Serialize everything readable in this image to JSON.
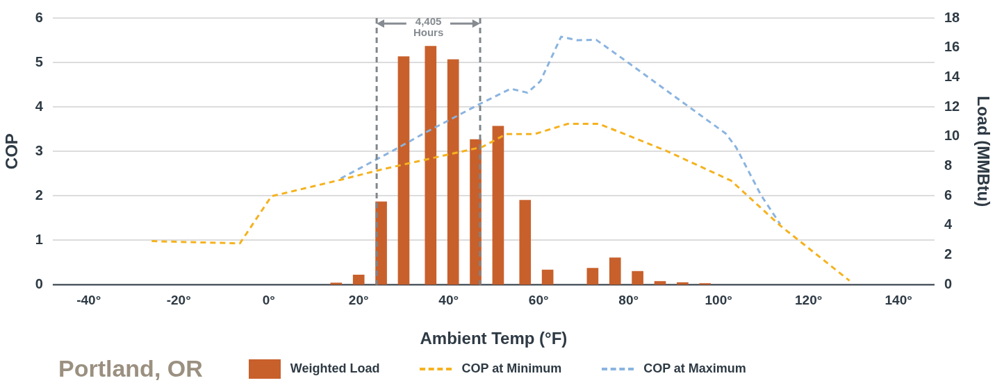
{
  "chart_data": {
    "type": "bar",
    "title": "Portland, OR",
    "xlabel": "Ambient Temp (°F)",
    "ylabel": "COP",
    "y2label": "Load (MMBtu)",
    "xlim": [
      -48,
      148
    ],
    "xticks": [
      {
        "value": -40,
        "label": "-40°"
      },
      {
        "value": -20,
        "label": "-20°"
      },
      {
        "value": 0,
        "label": "0°"
      },
      {
        "value": 20,
        "label": "20°"
      },
      {
        "value": 40,
        "label": "40°"
      },
      {
        "value": 60,
        "label": "60°"
      },
      {
        "value": 80,
        "label": "80°"
      },
      {
        "value": 100,
        "label": "100°"
      },
      {
        "value": 120,
        "label": "120°"
      },
      {
        "value": 140,
        "label": "140°"
      }
    ],
    "ylim": [
      0,
      6
    ],
    "yticks": [
      0,
      1,
      2,
      3,
      4,
      5,
      6
    ],
    "y2lim": [
      0,
      18
    ],
    "y2ticks": [
      0,
      2,
      4,
      6,
      8,
      10,
      12,
      14,
      16,
      18
    ],
    "grid": "y",
    "legend": "bottom",
    "series": [
      {
        "name": "Weighted Load",
        "axis": "y2",
        "color": "#c8602c",
        "x": [
          15,
          20,
          25,
          30,
          36,
          41,
          46,
          51,
          57,
          62,
          72,
          77,
          82,
          87,
          92,
          97
        ],
        "values": [
          0.12,
          0.66,
          5.6,
          15.4,
          16.1,
          15.2,
          9.8,
          10.7,
          5.7,
          1.0,
          1.12,
          1.82,
          0.9,
          0.22,
          0.14,
          0.09
        ]
      },
      {
        "name": "COP at Minimum",
        "type": "line",
        "line_style": "dashed",
        "color": "#f5b21e",
        "x": [
          -26,
          -6.4,
          0.6,
          16,
          25,
          36,
          47.5,
          52.8,
          59.1,
          66.5,
          73.4,
          88.2,
          102.8,
          113.7,
          129.1
        ],
        "values": [
          0.98,
          0.93,
          1.99,
          2.36,
          2.59,
          2.84,
          3.1,
          3.39,
          3.39,
          3.62,
          3.62,
          3.02,
          2.34,
          1.33,
          0.09
        ]
      },
      {
        "name": "COP at Maximum",
        "type": "line",
        "line_style": "dashed",
        "color": "#8ab4e0",
        "x": [
          16,
          27.7,
          34.4,
          47,
          53.8,
          57.5,
          60.4,
          65,
          68.6,
          72.8,
          80.4,
          101.6,
          103.9,
          109.4,
          113.7
        ],
        "values": [
          2.39,
          3.02,
          3.4,
          4.07,
          4.41,
          4.32,
          4.58,
          5.58,
          5.5,
          5.51,
          4.96,
          3.4,
          3.09,
          2.02,
          1.36
        ]
      }
    ],
    "ref_lines": [
      {
        "axis": "x",
        "value": 24,
        "color": "#7f868c",
        "line_style": "dashed"
      },
      {
        "axis": "x",
        "value": 47,
        "color": "#7f868c",
        "line_style": "dashed"
      }
    ],
    "annotations": [
      "4,405\nHours"
    ]
  }
}
